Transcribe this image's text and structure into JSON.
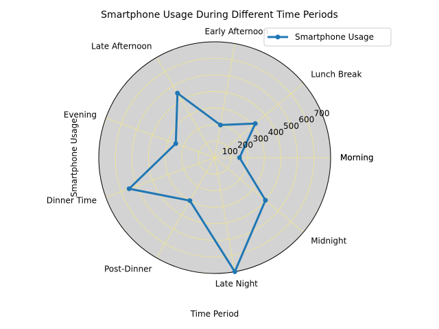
{
  "chart_data": {
    "type": "radar",
    "title": "Smartphone Usage During Different Time Periods",
    "xlabel": "Time Period",
    "ylabel": "Smartphone Usage",
    "categories": [
      "Morning",
      "Lunch Break",
      "Early Afternoon",
      "Late Afternoon",
      "Evening",
      "Dinner Time",
      "Post-Dinner",
      "Late Night",
      "Midnight"
    ],
    "series": [
      {
        "name": "Smartphone Usage",
        "values": [
          150,
          320,
          200,
          450,
          250,
          550,
          300,
          700,
          400
        ]
      }
    ],
    "angle_labels": [
      "Morning",
      "Lunch Break",
      "Early Afternoon",
      "Late Afternoon",
      "Evening",
      "Dinner Time",
      "Post-Dinner",
      "Late Night",
      "Midnight",
      "Morning"
    ],
    "rticks": [
      100,
      200,
      300,
      400,
      500,
      600,
      700
    ],
    "rlim": [
      0,
      700
    ],
    "grid": true,
    "legend_position": "top-right",
    "colors": {
      "line": "#1f77b4",
      "axes_bg": "#d3d3d3",
      "grid": "#f0e68c"
    }
  }
}
